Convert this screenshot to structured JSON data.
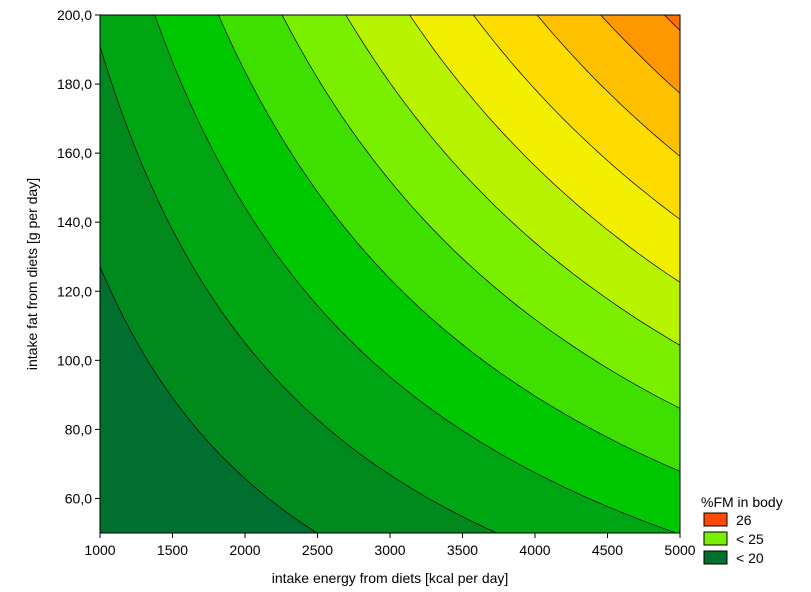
{
  "chart_data": {
    "type": "contour",
    "xlabel": "intake energy from diets [kcal per day]",
    "ylabel": "intake fat from diets [g per day]",
    "xlim": [
      1000,
      5000
    ],
    "ylim": [
      50,
      200
    ],
    "x_ticks": [
      {
        "value": 1000,
        "label": "1000"
      },
      {
        "value": 1500,
        "label": "1500"
      },
      {
        "value": 2000,
        "label": "2000"
      },
      {
        "value": 2500,
        "label": "2500"
      },
      {
        "value": 3000,
        "label": "3000"
      },
      {
        "value": 3500,
        "label": "3500"
      },
      {
        "value": 4000,
        "label": "4000"
      },
      {
        "value": 4500,
        "label": "4500"
      },
      {
        "value": 5000,
        "label": "5000"
      }
    ],
    "y_ticks": [
      {
        "value": 60,
        "label": "60,0"
      },
      {
        "value": 80,
        "label": "80,0"
      },
      {
        "value": 100,
        "label": "100,0"
      },
      {
        "value": 120,
        "label": "120,0"
      },
      {
        "value": 140,
        "label": "140,0"
      },
      {
        "value": 160,
        "label": "160,0"
      },
      {
        "value": 180,
        "label": "180,0"
      },
      {
        "value": 200,
        "label": "200,0"
      }
    ],
    "level_colors": [
      "#006F30",
      "#008A1E",
      "#00A514",
      "#00C800",
      "#3FE000",
      "#7AF000",
      "#B8F400",
      "#F2F000",
      "#FFDC00",
      "#FFC000",
      "#FF9800",
      "#FF7000",
      "#FF4800",
      "#FF1E00",
      "#EE0000",
      "#D80000",
      "#C20000",
      "#AC0000",
      "#980000",
      "#860000",
      "#780000"
    ],
    "legend": {
      "title": "%FM in body",
      "entries": [
        {
          "label": "26",
          "color": "#FF4800"
        },
        {
          "label": "< 25",
          "color": "#7AF000"
        },
        {
          "label": "< 20",
          "color": "#006F30"
        }
      ]
    }
  }
}
